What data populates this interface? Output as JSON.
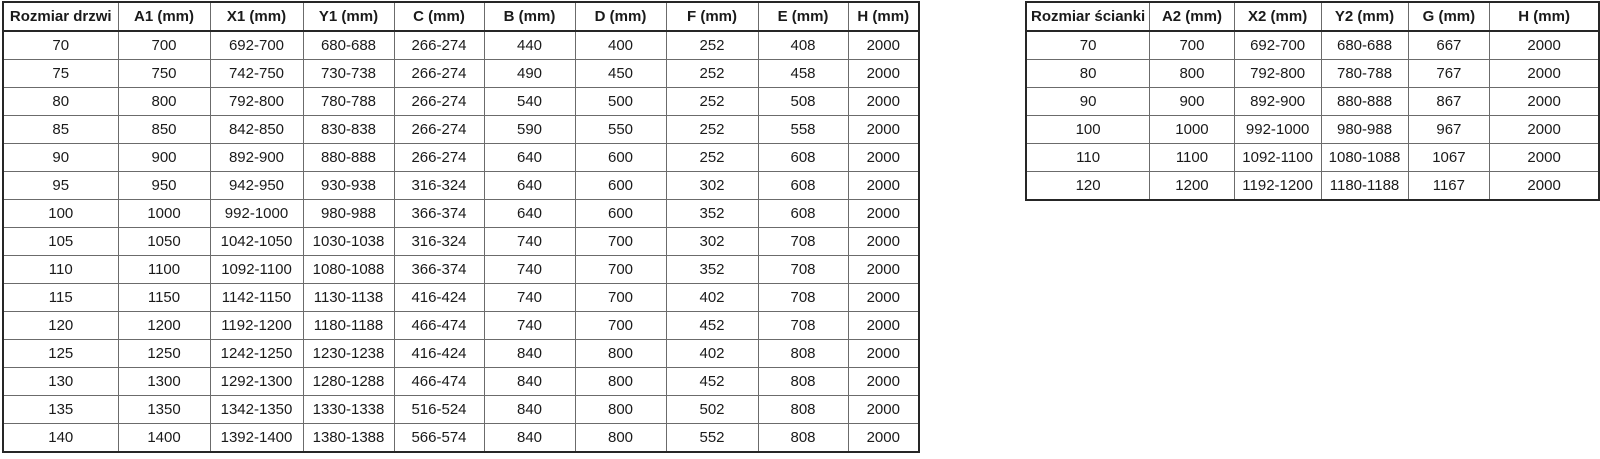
{
  "colors": {
    "background": "#ffffff",
    "text": "#1a1a1a",
    "border_outer": "#262626",
    "border_inner": "#6b6b6b"
  },
  "tables": [
    {
      "name": "door-size-table",
      "headers": [
        "Rozmiar drzwi",
        "A1 (mm)",
        "X1 (mm)",
        "Y1 (mm)",
        "C (mm)",
        "B (mm)",
        "D (mm)",
        "F (mm)",
        "E (mm)",
        "H (mm)"
      ],
      "rows": [
        [
          "70",
          "700",
          "692-700",
          "680-688",
          "266-274",
          "440",
          "400",
          "252",
          "408",
          "2000"
        ],
        [
          "75",
          "750",
          "742-750",
          "730-738",
          "266-274",
          "490",
          "450",
          "252",
          "458",
          "2000"
        ],
        [
          "80",
          "800",
          "792-800",
          "780-788",
          "266-274",
          "540",
          "500",
          "252",
          "508",
          "2000"
        ],
        [
          "85",
          "850",
          "842-850",
          "830-838",
          "266-274",
          "590",
          "550",
          "252",
          "558",
          "2000"
        ],
        [
          "90",
          "900",
          "892-900",
          "880-888",
          "266-274",
          "640",
          "600",
          "252",
          "608",
          "2000"
        ],
        [
          "95",
          "950",
          "942-950",
          "930-938",
          "316-324",
          "640",
          "600",
          "302",
          "608",
          "2000"
        ],
        [
          "100",
          "1000",
          "992-1000",
          "980-988",
          "366-374",
          "640",
          "600",
          "352",
          "608",
          "2000"
        ],
        [
          "105",
          "1050",
          "1042-1050",
          "1030-1038",
          "316-324",
          "740",
          "700",
          "302",
          "708",
          "2000"
        ],
        [
          "110",
          "1100",
          "1092-1100",
          "1080-1088",
          "366-374",
          "740",
          "700",
          "352",
          "708",
          "2000"
        ],
        [
          "115",
          "1150",
          "1142-1150",
          "1130-1138",
          "416-424",
          "740",
          "700",
          "402",
          "708",
          "2000"
        ],
        [
          "120",
          "1200",
          "1192-1200",
          "1180-1188",
          "466-474",
          "740",
          "700",
          "452",
          "708",
          "2000"
        ],
        [
          "125",
          "1250",
          "1242-1250",
          "1230-1238",
          "416-424",
          "840",
          "800",
          "402",
          "808",
          "2000"
        ],
        [
          "130",
          "1300",
          "1292-1300",
          "1280-1288",
          "466-474",
          "840",
          "800",
          "452",
          "808",
          "2000"
        ],
        [
          "135",
          "1350",
          "1342-1350",
          "1330-1338",
          "516-524",
          "840",
          "800",
          "502",
          "808",
          "2000"
        ],
        [
          "140",
          "1400",
          "1392-1400",
          "1380-1388",
          "566-574",
          "840",
          "800",
          "552",
          "808",
          "2000"
        ]
      ]
    },
    {
      "name": "wall-size-table",
      "headers": [
        "Rozmiar ścianki",
        "A2 (mm)",
        "X2 (mm)",
        "Y2 (mm)",
        "G (mm)",
        "H (mm)"
      ],
      "rows": [
        [
          "70",
          "700",
          "692-700",
          "680-688",
          "667",
          "2000"
        ],
        [
          "80",
          "800",
          "792-800",
          "780-788",
          "767",
          "2000"
        ],
        [
          "90",
          "900",
          "892-900",
          "880-888",
          "867",
          "2000"
        ],
        [
          "100",
          "1000",
          "992-1000",
          "980-988",
          "967",
          "2000"
        ],
        [
          "110",
          "1100",
          "1092-1100",
          "1080-1088",
          "1067",
          "2000"
        ],
        [
          "120",
          "1200",
          "1192-1200",
          "1180-1188",
          "1167",
          "2000"
        ]
      ]
    }
  ]
}
